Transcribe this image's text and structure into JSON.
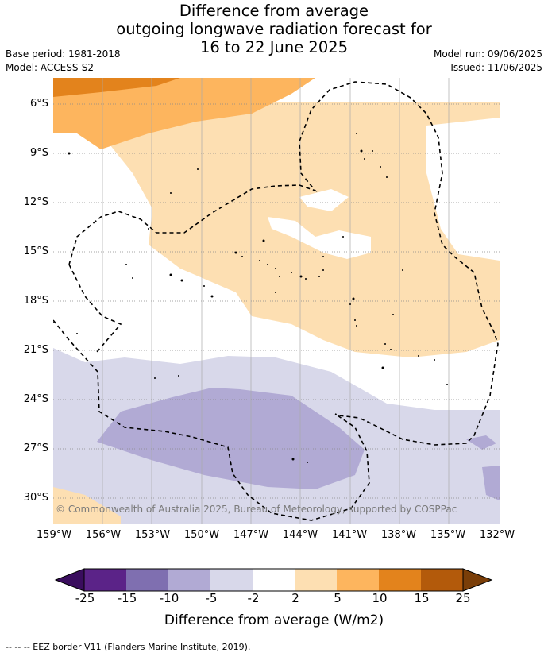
{
  "title": {
    "line1": "Difference from average",
    "line2": "outgoing longwave radiation forecast for",
    "line3": "16 to 22 June 2025"
  },
  "meta": {
    "base_period": "Base period: 1981-2018",
    "model": "Model: ACCESS-S2",
    "model_run": "Model run: 09/06/2025",
    "issued": "Issued: 11/06/2025"
  },
  "map": {
    "latitude_labels": [
      "6°S",
      "9°S",
      "12°S",
      "15°S",
      "18°S",
      "21°S",
      "24°S",
      "27°S",
      "30°S"
    ],
    "longitude_labels": [
      "159°W",
      "156°W",
      "153°W",
      "150°W",
      "147°W",
      "144°W",
      "141°W",
      "138°W",
      "135°W",
      "132°W"
    ],
    "copyright": "© Commonwealth of Australia 2025, Bureau of Meteorology, supported by COSPPac"
  },
  "colorbar": {
    "tick_labels": [
      "-25",
      "-15",
      "-10",
      "-5",
      "-2",
      "2",
      "5",
      "10",
      "15",
      "25"
    ],
    "colors": {
      "below_min": "#3a0d5e",
      "c1": "#5b2388",
      "c2": "#7f6fb0",
      "c3": "#b1aad4",
      "c4": "#d8d8ea",
      "neutral": "#ffffff",
      "w1": "#fddfb2",
      "w2": "#fdb55e",
      "w3": "#e3831c",
      "w4": "#b35a0b",
      "above_max": "#7a3e08"
    },
    "title": "Difference from average (W/m2)"
  },
  "footnote": "--  --  -- EEZ border V11 (Flanders Marine Institute, 2019)."
}
